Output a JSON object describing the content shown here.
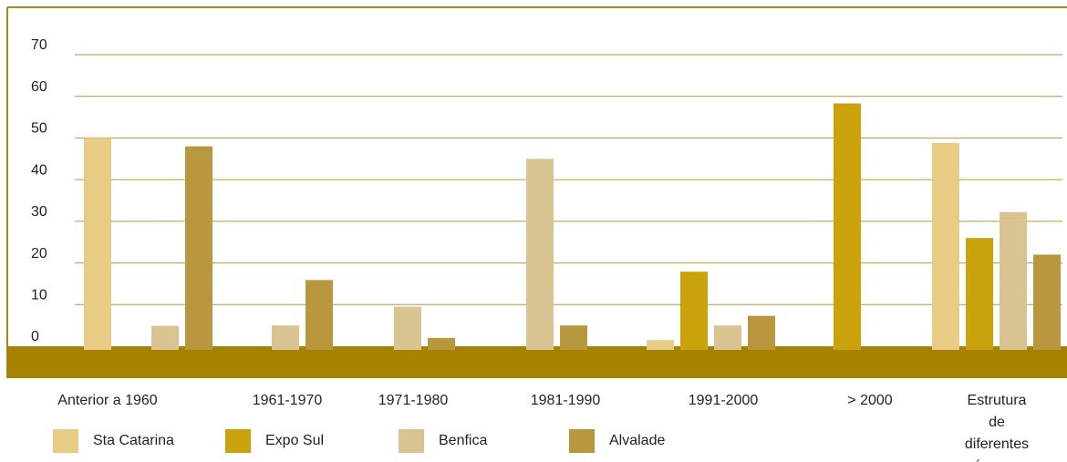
{
  "chart_data": {
    "type": "bar",
    "categories": [
      "Anterior a 1960",
      "1961-1970",
      "1971-1980",
      "1981-1990",
      "1991-2000",
      "> 2000",
      "Estrutura\nde diferentes\népocas"
    ],
    "series": [
      {
        "name": "Sta Catarina",
        "color": "#e8cc86",
        "values": [
          50,
          null,
          null,
          null,
          1.5,
          null,
          48.8
        ]
      },
      {
        "name": "Expo Sul",
        "color": "#c9a20c",
        "values": [
          null,
          null,
          null,
          null,
          17.9,
          58.3,
          26
        ]
      },
      {
        "name": "Benfica",
        "color": "#d9c391",
        "values": [
          4.9,
          5,
          9.5,
          45,
          5,
          null,
          32.2
        ]
      },
      {
        "name": "Alvalade",
        "color": "#b8973e",
        "values": [
          48,
          15.9,
          2,
          5,
          7.3,
          null,
          22
        ]
      }
    ],
    "ylim": [
      0,
      70
    ],
    "yticks": [
      0,
      10,
      20,
      30,
      40,
      50,
      60,
      70
    ],
    "grid": true
  }
}
